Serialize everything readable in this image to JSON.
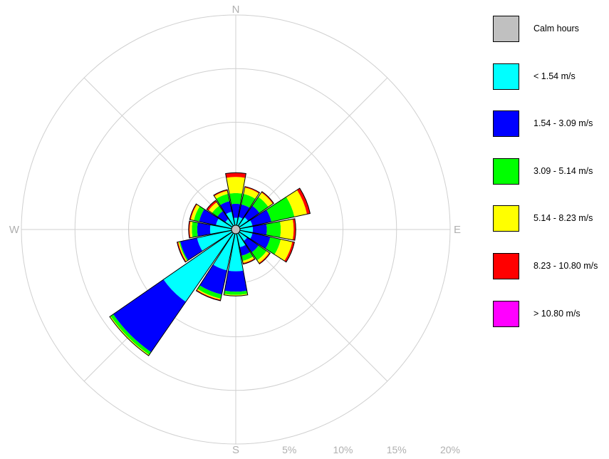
{
  "chart_data": {
    "type": "wind-rose",
    "directions": [
      "N",
      "NNE",
      "NE",
      "ENE",
      "E",
      "ESE",
      "SE",
      "SSE",
      "S",
      "SSW",
      "SW",
      "WSW",
      "W",
      "WNW",
      "NW",
      "NNW"
    ],
    "cardinal_labels": [
      "N",
      "E",
      "S",
      "W"
    ],
    "rings": [
      5,
      10,
      15,
      20
    ],
    "ring_labels": [
      "5%",
      "10%",
      "15%",
      "20%"
    ],
    "rmax": 20,
    "legend": [
      {
        "label": "Calm hours",
        "color": "#c0c0c0"
      },
      {
        "label": "< 1.54 m/s",
        "color": "#00ffff"
      },
      {
        "label": "1.54 - 3.09 m/s",
        "color": "#0000ff"
      },
      {
        "label": "3.09 - 5.14 m/s",
        "color": "#00ff00"
      },
      {
        "label": "5.14 - 8.23 m/s",
        "color": "#ffff00"
      },
      {
        "label": "8.23 - 10.80 m/s",
        "color": "#ff0000"
      },
      {
        "label": "> 10.80 m/s",
        "color": "#ff00ff"
      }
    ],
    "calm_color": "#c0c0c0",
    "series": [
      {
        "values": [
          0.7,
          0.8,
          1.0,
          1.2,
          1.2,
          1.2,
          0.9,
          1.3,
          3.5,
          3.5,
          7.8,
          3.3,
          2.0,
          1.5,
          0.8,
          1.3
        ]
      },
      {
        "values": [
          1.3,
          1.2,
          1.3,
          1.8,
          1.3,
          1.7,
          1.3,
          0.8,
          1.9,
          2.3,
          5.7,
          1.6,
          1.2,
          1.6,
          0.9,
          1.0
        ]
      },
      {
        "values": [
          1.0,
          1.0,
          1.0,
          2.2,
          1.3,
          1.0,
          0.9,
          0.5,
          0.3,
          0.4,
          0.3,
          0.1,
          0.5,
          0.5,
          0.6,
          0.7
        ]
      },
      {
        "values": [
          1.5,
          0.6,
          0.5,
          1.2,
          1.2,
          1.1,
          0.3,
          0.2,
          0.1,
          0.1,
          0.1,
          0.1,
          0.2,
          0.3,
          0.4,
          0.3
        ]
      },
      {
        "values": [
          0.4,
          0.1,
          0.1,
          0.3,
          0.2,
          0.2,
          0.1,
          0.1,
          0.0,
          0.1,
          0.0,
          0.1,
          0.1,
          0.1,
          0.2,
          0.1
        ]
      },
      {
        "values": [
          0,
          0,
          0,
          0,
          0,
          0,
          0,
          0,
          0,
          0,
          0,
          0,
          0,
          0,
          0,
          0
        ]
      }
    ],
    "calm_percent": 0.5,
    "grid": true,
    "legend_position": "right"
  }
}
